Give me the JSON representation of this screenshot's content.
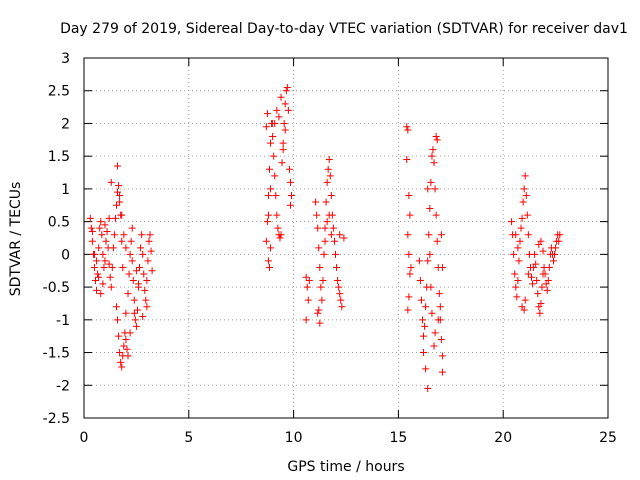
{
  "chart_data": {
    "type": "scatter",
    "title": "Day 279 of 2019, Sidereal Day-to-day VTEC variation (SDTVAR) for receiver dav1",
    "xlabel": "GPS time / hours",
    "ylabel": "SDTVAR / TECUs",
    "xlim": [
      0,
      25
    ],
    "ylim": [
      -2.5,
      3
    ],
    "xticks": [
      0,
      5,
      10,
      15,
      20,
      25
    ],
    "xtick_labels": [
      "0",
      "5",
      "10",
      "15",
      "20",
      "25"
    ],
    "yticks": [
      -2.5,
      -2,
      -1.5,
      -1,
      -0.5,
      0,
      0.5,
      1,
      1.5,
      2,
      2.5,
      3
    ],
    "ytick_labels": [
      "-2.5",
      "-2",
      "-1.5",
      "-1",
      "-0.5",
      "0",
      "0.5",
      "1",
      "1.5",
      "2",
      "2.5",
      "3"
    ],
    "grid": true,
    "marker": "+",
    "color": "#ff0000",
    "series": [
      {
        "name": "dav1",
        "points": [
          [
            0.3,
            0.55
          ],
          [
            0.35,
            0.4
          ],
          [
            0.4,
            0.2
          ],
          [
            0.45,
            0.0
          ],
          [
            0.5,
            -0.2
          ],
          [
            0.55,
            -0.4
          ],
          [
            0.6,
            -0.55
          ],
          [
            0.65,
            -0.3
          ],
          [
            0.7,
            0.1
          ],
          [
            0.75,
            0.4
          ],
          [
            0.8,
            0.5
          ],
          [
            0.85,
            0.3
          ],
          [
            0.9,
            0.0
          ],
          [
            0.95,
            -0.2
          ],
          [
            1.0,
            -0.1
          ],
          [
            1.05,
            0.2
          ],
          [
            1.1,
            0.35
          ],
          [
            1.15,
            0.1
          ],
          [
            1.2,
            -0.15
          ],
          [
            1.25,
            -0.35
          ],
          [
            1.3,
            -0.5
          ],
          [
            1.35,
            -0.2
          ],
          [
            1.4,
            0.1
          ],
          [
            1.45,
            0.3
          ],
          [
            1.5,
            0.55
          ],
          [
            1.55,
            0.75
          ],
          [
            1.6,
            0.95
          ],
          [
            1.65,
            1.05
          ],
          [
            1.7,
            0.9
          ],
          [
            1.75,
            0.6
          ],
          [
            1.8,
            0.2
          ],
          [
            1.85,
            -0.2
          ],
          [
            1.6,
            1.35
          ],
          [
            1.3,
            1.1
          ],
          [
            0.5,
            0.0
          ],
          [
            0.6,
            -0.1
          ],
          [
            0.4,
            0.35
          ],
          [
            1.55,
            -0.8
          ],
          [
            1.6,
            -1.0
          ],
          [
            1.65,
            -1.25
          ],
          [
            1.7,
            -1.5
          ],
          [
            1.75,
            -1.65
          ],
          [
            1.8,
            -1.72
          ],
          [
            1.85,
            -1.55
          ],
          [
            1.9,
            -1.4
          ],
          [
            1.95,
            -1.2
          ],
          [
            2.0,
            -1.3
          ],
          [
            2.05,
            -1.45
          ],
          [
            2.1,
            -1.55
          ],
          [
            2.0,
            -0.9
          ],
          [
            2.1,
            -0.6
          ],
          [
            2.15,
            -0.3
          ],
          [
            2.2,
            0.0
          ],
          [
            2.25,
            0.2
          ],
          [
            2.3,
            -0.1
          ],
          [
            2.35,
            -0.4
          ],
          [
            2.4,
            -0.7
          ],
          [
            2.45,
            -1.0
          ],
          [
            2.5,
            -1.1
          ],
          [
            2.55,
            -0.85
          ],
          [
            2.6,
            -0.5
          ],
          [
            2.65,
            -0.2
          ],
          [
            2.7,
            0.1
          ],
          [
            2.75,
            0.3
          ],
          [
            2.8,
            0.0
          ],
          [
            2.85,
            -0.3
          ],
          [
            2.9,
            -0.55
          ],
          [
            2.95,
            -0.7
          ],
          [
            3.0,
            -0.4
          ],
          [
            3.05,
            -0.1
          ],
          [
            3.1,
            0.2
          ],
          [
            3.15,
            0.3
          ],
          [
            3.2,
            0.05
          ],
          [
            3.25,
            -0.25
          ],
          [
            2.5,
            -0.25
          ],
          [
            2.6,
            -0.45
          ],
          [
            2.3,
            0.4
          ],
          [
            2.0,
            0.1
          ],
          [
            1.9,
            0.3
          ],
          [
            1.8,
            0.6
          ],
          [
            1.7,
            0.8
          ],
          [
            1.2,
            0.55
          ],
          [
            1.0,
            0.45
          ],
          [
            0.9,
            -0.45
          ],
          [
            0.8,
            -0.6
          ],
          [
            0.7,
            -0.35
          ],
          [
            2.2,
            -1.2
          ],
          [
            2.4,
            -0.9
          ],
          [
            3.0,
            -0.8
          ],
          [
            2.8,
            -0.95
          ],
          [
            8.7,
            0.2
          ],
          [
            8.75,
            0.5
          ],
          [
            8.8,
            0.9
          ],
          [
            8.85,
            1.3
          ],
          [
            8.9,
            1.7
          ],
          [
            8.95,
            2.0
          ],
          [
            9.0,
            1.8
          ],
          [
            9.05,
            1.5
          ],
          [
            9.1,
            1.2
          ],
          [
            9.15,
            0.9
          ],
          [
            9.2,
            0.6
          ],
          [
            9.25,
            0.4
          ],
          [
            9.3,
            0.3
          ],
          [
            9.35,
            0.25
          ],
          [
            9.4,
            0.3
          ],
          [
            9.45,
            1.4
          ],
          [
            9.5,
            1.7
          ],
          [
            9.55,
            2.0
          ],
          [
            9.6,
            2.3
          ],
          [
            9.65,
            2.5
          ],
          [
            9.7,
            2.55
          ],
          [
            9.75,
            2.2
          ],
          [
            9.6,
            1.9
          ],
          [
            9.5,
            1.6
          ],
          [
            8.8,
            -0.1
          ],
          [
            8.85,
            -0.2
          ],
          [
            8.9,
            0.1
          ],
          [
            8.7,
            1.95
          ],
          [
            8.75,
            2.15
          ],
          [
            9.2,
            2.2
          ],
          [
            9.3,
            2.1
          ],
          [
            9.4,
            2.4
          ],
          [
            9.1,
            2.0
          ],
          [
            9.0,
            2.0
          ],
          [
            9.8,
            1.3
          ],
          [
            9.85,
            1.1
          ],
          [
            9.9,
            0.9
          ],
          [
            9.85,
            0.75
          ],
          [
            8.9,
            1.0
          ],
          [
            8.8,
            0.6
          ],
          [
            10.6,
            -0.35
          ],
          [
            10.65,
            -0.5
          ],
          [
            10.7,
            -0.7
          ],
          [
            10.75,
            -0.4
          ],
          [
            10.6,
            -1.0
          ],
          [
            11.05,
            0.8
          ],
          [
            11.1,
            0.6
          ],
          [
            11.15,
            0.4
          ],
          [
            11.2,
            0.1
          ],
          [
            11.25,
            -0.2
          ],
          [
            11.3,
            -0.5
          ],
          [
            11.35,
            -0.7
          ],
          [
            11.4,
            -0.4
          ],
          [
            11.45,
            0.0
          ],
          [
            11.5,
            0.4
          ],
          [
            11.55,
            0.8
          ],
          [
            11.6,
            1.1
          ],
          [
            11.65,
            1.3
          ],
          [
            11.7,
            1.45
          ],
          [
            11.75,
            1.2
          ],
          [
            11.8,
            0.9
          ],
          [
            11.85,
            0.6
          ],
          [
            11.9,
            0.4
          ],
          [
            11.95,
            0.2
          ],
          [
            12.0,
            0.0
          ],
          [
            12.05,
            -0.2
          ],
          [
            12.1,
            -0.4
          ],
          [
            12.15,
            -0.5
          ],
          [
            12.2,
            -0.6
          ],
          [
            12.25,
            -0.7
          ],
          [
            12.3,
            -0.8
          ],
          [
            11.2,
            -0.85
          ],
          [
            11.25,
            -1.05
          ],
          [
            11.15,
            -0.9
          ],
          [
            12.4,
            0.25
          ],
          [
            12.2,
            0.3
          ],
          [
            11.6,
            0.5
          ],
          [
            11.7,
            0.6
          ],
          [
            11.8,
            0.3
          ],
          [
            11.5,
            0.2
          ],
          [
            15.4,
            1.95
          ],
          [
            15.45,
            1.9
          ],
          [
            15.4,
            1.45
          ],
          [
            15.5,
            0.9
          ],
          [
            15.55,
            0.6
          ],
          [
            15.45,
            0.3
          ],
          [
            15.5,
            0.0
          ],
          [
            15.55,
            -0.3
          ],
          [
            15.5,
            -0.65
          ],
          [
            15.45,
            -0.85
          ],
          [
            15.6,
            -0.2
          ],
          [
            16.0,
            -0.1
          ],
          [
            16.05,
            -0.4
          ],
          [
            16.1,
            -0.7
          ],
          [
            16.15,
            -1.0
          ],
          [
            16.2,
            -1.25
          ],
          [
            16.25,
            -1.1
          ],
          [
            16.3,
            -0.8
          ],
          [
            16.35,
            -0.5
          ],
          [
            16.4,
            -0.1
          ],
          [
            16.45,
            0.3
          ],
          [
            16.5,
            0.7
          ],
          [
            16.55,
            1.1
          ],
          [
            16.6,
            1.5
          ],
          [
            16.65,
            1.6
          ],
          [
            16.7,
            1.4
          ],
          [
            16.75,
            1.0
          ],
          [
            16.8,
            0.6
          ],
          [
            16.85,
            0.2
          ],
          [
            16.9,
            -0.2
          ],
          [
            16.95,
            -0.6
          ],
          [
            17.0,
            -1.0
          ],
          [
            17.05,
            -1.3
          ],
          [
            17.1,
            -1.55
          ],
          [
            16.8,
            1.8
          ],
          [
            16.85,
            1.75
          ],
          [
            16.7,
            -1.4
          ],
          [
            16.75,
            -1.2
          ],
          [
            16.6,
            -0.9
          ],
          [
            16.55,
            -0.5
          ],
          [
            16.9,
            -1.0
          ],
          [
            17.0,
            -0.8
          ],
          [
            17.1,
            -0.2
          ],
          [
            17.05,
            0.3
          ],
          [
            16.2,
            -1.5
          ],
          [
            16.3,
            -1.75
          ],
          [
            16.4,
            -2.05
          ],
          [
            17.1,
            -1.8
          ],
          [
            16.5,
            0.0
          ],
          [
            16.4,
            1.0
          ],
          [
            20.4,
            0.5
          ],
          [
            20.45,
            0.3
          ],
          [
            20.5,
            0.0
          ],
          [
            20.55,
            -0.3
          ],
          [
            20.6,
            -0.5
          ],
          [
            20.65,
            -0.65
          ],
          [
            20.7,
            -0.4
          ],
          [
            20.75,
            -0.1
          ],
          [
            20.8,
            0.2
          ],
          [
            20.85,
            0.4
          ],
          [
            20.9,
            0.55
          ],
          [
            20.95,
            0.8
          ],
          [
            21.0,
            1.0
          ],
          [
            21.05,
            1.2
          ],
          [
            21.1,
            0.9
          ],
          [
            21.15,
            0.6
          ],
          [
            21.2,
            0.3
          ],
          [
            21.25,
            0.0
          ],
          [
            21.3,
            -0.2
          ],
          [
            21.35,
            -0.35
          ],
          [
            21.4,
            -0.45
          ],
          [
            21.45,
            -0.2
          ],
          [
            21.5,
            0.0
          ],
          [
            21.55,
            -0.15
          ],
          [
            21.6,
            -0.4
          ],
          [
            21.65,
            -0.6
          ],
          [
            21.7,
            -0.8
          ],
          [
            21.75,
            -0.9
          ],
          [
            21.8,
            -0.75
          ],
          [
            21.85,
            -0.5
          ],
          [
            21.9,
            -0.3
          ],
          [
            21.95,
            -0.2
          ],
          [
            22.0,
            -0.3
          ],
          [
            22.05,
            -0.45
          ],
          [
            22.1,
            -0.55
          ],
          [
            22.15,
            -0.4
          ],
          [
            22.2,
            -0.2
          ],
          [
            22.25,
            0.0
          ],
          [
            22.3,
            0.1
          ],
          [
            22.35,
            0.0
          ],
          [
            22.4,
            -0.1
          ],
          [
            22.45,
            0.0
          ],
          [
            22.5,
            0.1
          ],
          [
            22.55,
            0.2
          ],
          [
            22.6,
            0.3
          ],
          [
            22.65,
            0.2
          ],
          [
            22.7,
            0.3
          ],
          [
            21.7,
            0.15
          ],
          [
            21.8,
            0.2
          ],
          [
            21.9,
            0.05
          ],
          [
            20.6,
            0.3
          ],
          [
            20.7,
            0.1
          ],
          [
            20.9,
            -0.8
          ],
          [
            21.0,
            -0.85
          ],
          [
            21.05,
            -0.7
          ],
          [
            21.2,
            -0.3
          ]
        ]
      }
    ]
  }
}
